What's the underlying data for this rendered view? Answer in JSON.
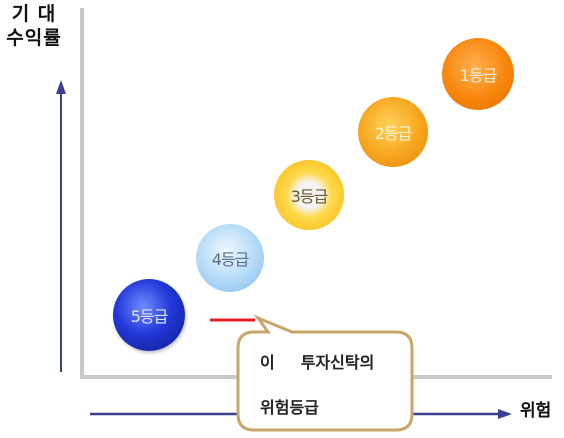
{
  "axes": {
    "y_label_line1": "기 대",
    "y_label_line2": "수익률",
    "x_label": "위험"
  },
  "grades": [
    {
      "label": "5등급",
      "color": "#1f34c9"
    },
    {
      "label": "4등급",
      "color": "#a9d3f5"
    },
    {
      "label": "3등급",
      "color": "#f7c21a"
    },
    {
      "label": "2등급",
      "color": "#f5a01a"
    },
    {
      "label": "1등급",
      "color": "#f28a0c"
    }
  ],
  "callout": {
    "prefix": "이",
    "line1": "투자신탁의",
    "line2": "위험등급",
    "marker_color": "#e02020",
    "border_color": "#c8a66a"
  }
}
